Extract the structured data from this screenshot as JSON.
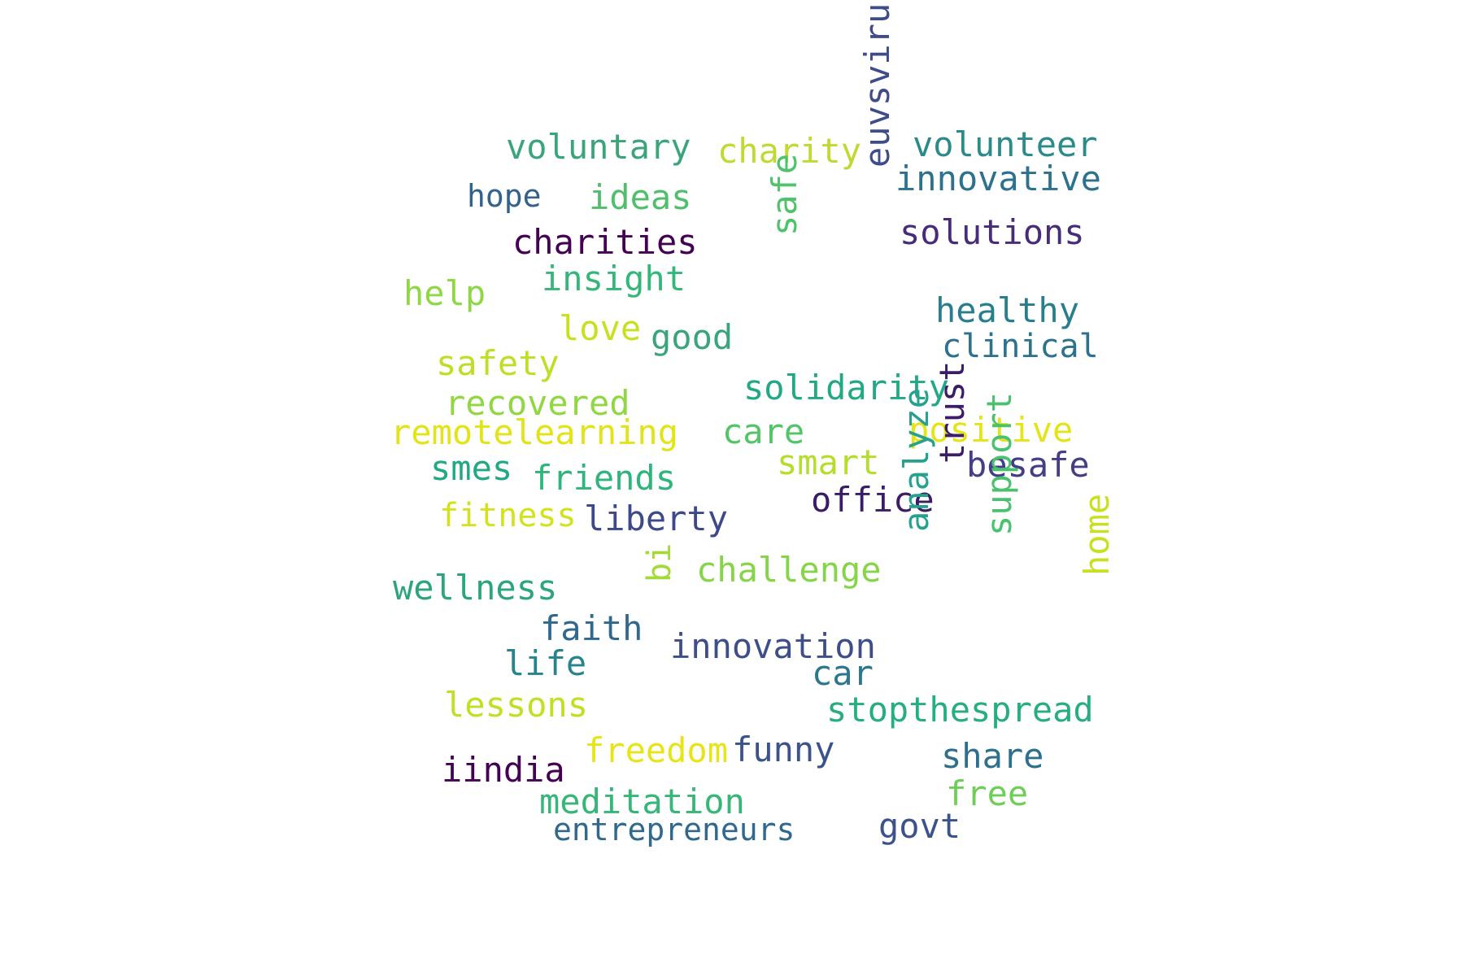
{
  "words": [
    {
      "text": "voluntary",
      "color": "#3aa57a"
    },
    {
      "text": "charity",
      "color": "#c2d932"
    },
    {
      "text": "volunteer",
      "color": "#2a8b8a"
    },
    {
      "text": "innovative",
      "color": "#2c718e"
    },
    {
      "text": "euvsvirus",
      "color": "#3e4c8a"
    },
    {
      "text": "hope",
      "color": "#33638d"
    },
    {
      "text": "ideas",
      "color": "#4fbf6c"
    },
    {
      "text": "charities",
      "color": "#440154"
    },
    {
      "text": "solutions",
      "color": "#472c7a"
    },
    {
      "text": "safe",
      "color": "#4ec36b"
    },
    {
      "text": "insight",
      "color": "#35b779"
    },
    {
      "text": "help",
      "color": "#8fd744"
    },
    {
      "text": "healthy",
      "color": "#277f8e"
    },
    {
      "text": "love",
      "color": "#c8e020"
    },
    {
      "text": "good",
      "color": "#3aa57a"
    },
    {
      "text": "clinical",
      "color": "#2c728e"
    },
    {
      "text": "safety",
      "color": "#bddf26"
    },
    {
      "text": "solidarity",
      "color": "#22a884"
    },
    {
      "text": "recovered",
      "color": "#90d743"
    },
    {
      "text": "remotelearning",
      "color": "#e2e418"
    },
    {
      "text": "care",
      "color": "#52c569"
    },
    {
      "text": "positive",
      "color": "#e5e419"
    },
    {
      "text": "smart",
      "color": "#b5de2b"
    },
    {
      "text": "besafe",
      "color": "#433e85"
    },
    {
      "text": "smes",
      "color": "#22a884"
    },
    {
      "text": "friends",
      "color": "#2fb47c"
    },
    {
      "text": "office",
      "color": "#3b1c66"
    },
    {
      "text": "trust",
      "color": "#3b1c66"
    },
    {
      "text": "fitness",
      "color": "#d2e21b"
    },
    {
      "text": "liberty",
      "color": "#3e4989"
    },
    {
      "text": "analyze",
      "color": "#25a18e"
    },
    {
      "text": "support",
      "color": "#4ac16d"
    },
    {
      "text": "home",
      "color": "#c8e020"
    },
    {
      "text": "challenge",
      "color": "#86d549"
    },
    {
      "text": "wellness",
      "color": "#2ca57f"
    },
    {
      "text": "bi",
      "color": "#a2da37"
    },
    {
      "text": "faith",
      "color": "#31688e"
    },
    {
      "text": "innovation",
      "color": "#3d4e8a"
    },
    {
      "text": "life",
      "color": "#25848e"
    },
    {
      "text": "car",
      "color": "#2a788e"
    },
    {
      "text": "stopthespread",
      "color": "#26ad81"
    },
    {
      "text": "lessons",
      "color": "#c2df23"
    },
    {
      "text": "freedom",
      "color": "#e7e419"
    },
    {
      "text": "funny",
      "color": "#3b528b"
    },
    {
      "text": "share",
      "color": "#2d708e"
    },
    {
      "text": "iindia",
      "color": "#440154"
    },
    {
      "text": "free",
      "color": "#6ece58"
    },
    {
      "text": "meditation",
      "color": "#36b677"
    },
    {
      "text": "govt",
      "color": "#3b528b"
    },
    {
      "text": "entrepreneurs",
      "color": "#31688e"
    }
  ]
}
